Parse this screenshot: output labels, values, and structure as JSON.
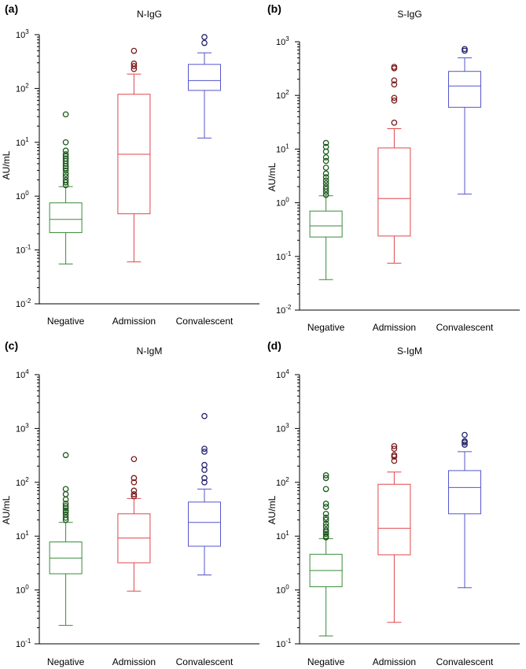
{
  "figure": {
    "categories": [
      "Negative",
      "Admission",
      "Convalescent"
    ],
    "colors": [
      "#3a8a3a",
      "#e0474c",
      "#5555cc"
    ],
    "ylabel": "AU/mL"
  },
  "chart_data": [
    {
      "type": "boxplot",
      "panel_label": "(a)",
      "title": "N-IgG",
      "ylabel": "AU/mL",
      "yscale": "log",
      "ylim_exp": [
        -2,
        3
      ],
      "tick_labels": [
        "10-2",
        "10-1",
        "100",
        "101",
        "102",
        "103"
      ],
      "categories": [
        "Negative",
        "Admission",
        "Convalescent"
      ],
      "boxes": [
        {
          "whisker_low": 0.055,
          "q1": 0.21,
          "median": 0.37,
          "q3": 0.75,
          "whisker_high": 1.5,
          "outliers": [
            1.6,
            1.8,
            2.0,
            2.3,
            2.6,
            3.0,
            3.3,
            3.6,
            4.0,
            4.5,
            5.0,
            5.5,
            6.0,
            7.0,
            10,
            33
          ]
        },
        {
          "whisker_low": 0.06,
          "q1": 0.47,
          "median": 6.0,
          "q3": 78,
          "whisker_high": 185,
          "outliers": [
            230,
            260,
            290,
            500
          ]
        },
        {
          "whisker_low": 12,
          "q1": 92,
          "median": 140,
          "q3": 280,
          "whisker_high": 460,
          "outliers": [
            700,
            900
          ]
        }
      ]
    },
    {
      "type": "boxplot",
      "panel_label": "(b)",
      "title": "S-IgG",
      "ylabel": "AU/mL",
      "yscale": "log",
      "ylim_exp": [
        -2,
        3
      ],
      "tick_labels": [
        "10-2",
        "10-1",
        "100",
        "101",
        "102",
        "103"
      ],
      "categories": [
        "Negative",
        "Admission",
        "Convalescent"
      ],
      "boxes": [
        {
          "whisker_low": 0.037,
          "q1": 0.23,
          "median": 0.37,
          "q3": 0.7,
          "whisker_high": 1.35,
          "outliers": [
            1.4,
            1.6,
            1.8,
            2.0,
            2.3,
            2.6,
            3.0,
            3.5,
            4.5,
            6.0,
            7.0,
            9.0,
            11,
            13
          ]
        },
        {
          "whisker_low": 0.075,
          "q1": 0.24,
          "median": 1.2,
          "q3": 10.5,
          "whisker_high": 24,
          "outliers": [
            31,
            80,
            90,
            160,
            190,
            320,
            340
          ]
        },
        {
          "whisker_low": 1.45,
          "q1": 60,
          "median": 150,
          "q3": 280,
          "whisker_high": 500,
          "outliers": [
            680,
            730
          ]
        }
      ]
    },
    {
      "type": "boxplot",
      "panel_label": "(c)",
      "title": "N-IgM",
      "ylabel": "AU/mL",
      "yscale": "log",
      "ylim_exp": [
        -1,
        4
      ],
      "tick_labels": [
        "10-1",
        "100",
        "101",
        "102",
        "103",
        "104"
      ],
      "categories": [
        "Negative",
        "Admission",
        "Convalescent"
      ],
      "boxes": [
        {
          "whisker_low": 0.22,
          "q1": 2.0,
          "median": 3.9,
          "q3": 7.8,
          "whisker_high": 18,
          "outliers": [
            20,
            22,
            25,
            28,
            30,
            33,
            36,
            40,
            48,
            60,
            75,
            320
          ]
        },
        {
          "whisker_low": 0.95,
          "q1": 3.2,
          "median": 9.2,
          "q3": 26,
          "whisker_high": 50,
          "outliers": [
            55,
            60,
            70,
            100,
            120,
            270
          ]
        },
        {
          "whisker_low": 1.9,
          "q1": 6.5,
          "median": 18,
          "q3": 43,
          "whisker_high": 75,
          "outliers": [
            100,
            120,
            170,
            210,
            370,
            420,
            1700
          ]
        }
      ]
    },
    {
      "type": "boxplot",
      "panel_label": "(d)",
      "title": "S-IgM",
      "ylabel": "AU/mL",
      "yscale": "log",
      "ylim_exp": [
        -1,
        4
      ],
      "tick_labels": [
        "10-1",
        "100",
        "101",
        "102",
        "103",
        "104"
      ],
      "categories": [
        "Negative",
        "Admission",
        "Convalescent"
      ],
      "boxes": [
        {
          "whisker_low": 0.14,
          "q1": 1.15,
          "median": 2.3,
          "q3": 4.6,
          "whisker_high": 9,
          "outliers": [
            9.5,
            10,
            11,
            12,
            13,
            15,
            17,
            20,
            22,
            26,
            35,
            40,
            75,
            120,
            135
          ]
        },
        {
          "whisker_low": 0.25,
          "q1": 4.5,
          "median": 14,
          "q3": 92,
          "whisker_high": 155,
          "outliers": [
            250,
            300,
            320,
            420,
            470
          ]
        },
        {
          "whisker_low": 1.1,
          "q1": 26,
          "median": 80,
          "q3": 165,
          "whisker_high": 370,
          "outliers": [
            500,
            550,
            580,
            760
          ]
        }
      ]
    }
  ]
}
